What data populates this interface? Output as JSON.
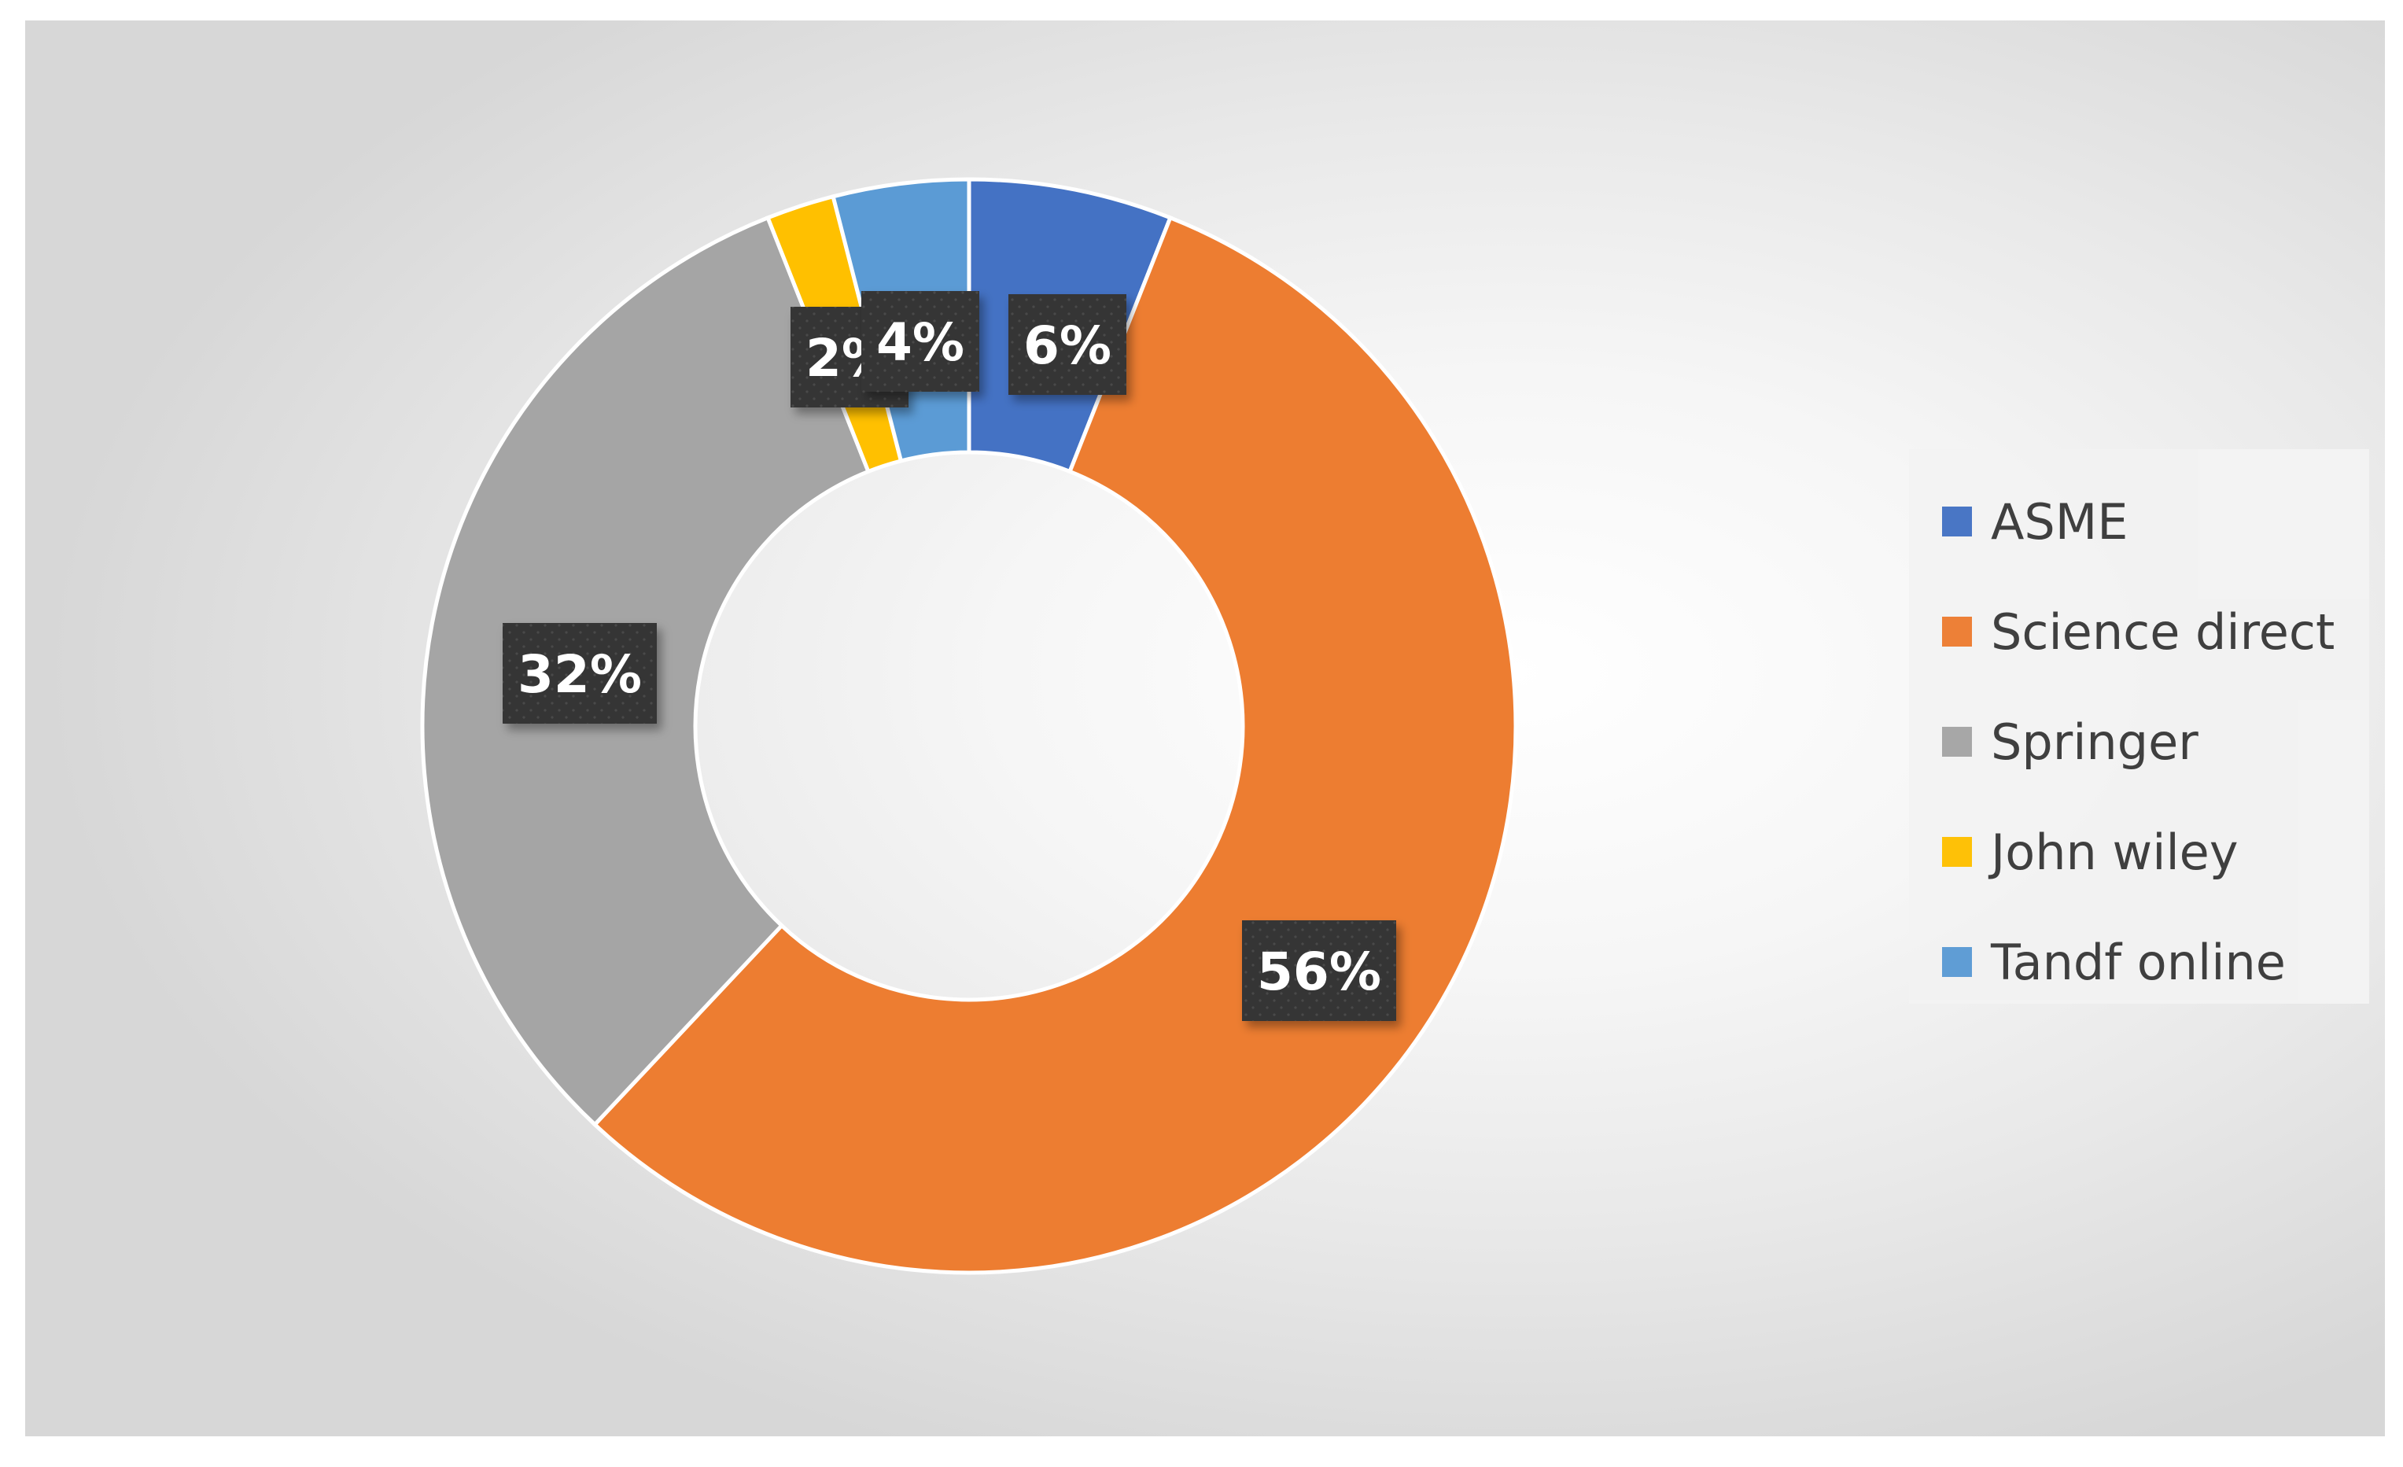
{
  "chart_data": {
    "type": "pie",
    "variant": "donut",
    "title": "",
    "categories": [
      "ASME",
      "Science direct",
      "Springer",
      "John wiley",
      "Tandf online"
    ],
    "values": [
      6,
      56,
      32,
      2,
      4
    ],
    "data_labels": [
      "6%",
      "56%",
      "32%",
      "2%",
      "4%"
    ],
    "colors": [
      "#4472C4",
      "#ED7D31",
      "#A5A5A5",
      "#FFC000",
      "#5B9BD5"
    ],
    "legend_position": "right",
    "label_style": {
      "background": "#3a3a3a",
      "text_color": "#ffffff"
    }
  }
}
